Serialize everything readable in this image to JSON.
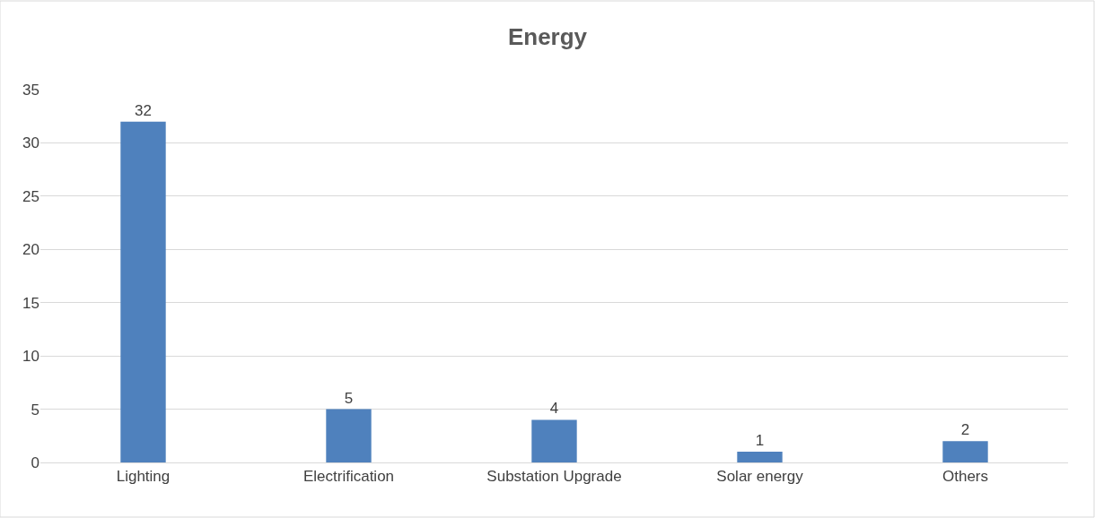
{
  "chart_data": {
    "type": "bar",
    "title": "Energy",
    "categories": [
      "Lighting",
      "Electrification",
      "Substation Upgrade",
      "Solar energy",
      "Others"
    ],
    "values": [
      32,
      5,
      4,
      1,
      2
    ],
    "color": "#4f81bd",
    "ylim": [
      0,
      35
    ],
    "yticks": [
      0,
      5,
      10,
      15,
      20,
      25,
      30,
      35
    ],
    "grid": "y",
    "data_labels": true,
    "legend": false
  }
}
